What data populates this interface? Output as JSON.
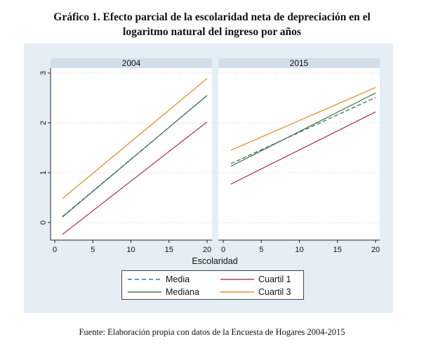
{
  "title_line1": "Gráfico 1. Efecto parcial de la escolaridad neta de depreciación en el",
  "title_line2": "logaritmo natural del ingreso por años",
  "source": "Fuente: Elaboración propia con datos de la Encuesta de Hogares 2004-2015",
  "chart_data": [
    {
      "type": "line",
      "panel_title": "2004",
      "xlabel": "Escolaridad",
      "ylabel": "",
      "x": [
        1,
        20
      ],
      "xlim": [
        0,
        20
      ],
      "ylim": [
        -0.3,
        3
      ],
      "xticks": [
        0,
        5,
        10,
        15,
        20
      ],
      "yticks": [
        0,
        1,
        2,
        3
      ],
      "grid": true,
      "series": [
        {
          "name": "Media",
          "color": "#4a6f96",
          "dash": true,
          "values": [
            0.12,
            2.55
          ]
        },
        {
          "name": "Mediana",
          "color": "#4a7f3a",
          "dash": false,
          "values": [
            0.11,
            2.55
          ]
        },
        {
          "name": "Cuartil 1",
          "color": "#b0415a",
          "dash": false,
          "values": [
            -0.24,
            2.02
          ]
        },
        {
          "name": "Cuartil 3",
          "color": "#e8902a",
          "dash": false,
          "values": [
            0.48,
            2.89
          ]
        }
      ]
    },
    {
      "type": "line",
      "panel_title": "2015",
      "xlabel": "Escolaridad",
      "ylabel": "",
      "x": [
        1,
        20
      ],
      "xlim": [
        0,
        20
      ],
      "ylim": [
        -0.3,
        3
      ],
      "xticks": [
        0,
        5,
        10,
        15,
        20
      ],
      "yticks": [
        0,
        1,
        2,
        3
      ],
      "grid": true,
      "series": [
        {
          "name": "Media",
          "color": "#4a6f96",
          "dash": true,
          "values": [
            1.18,
            2.51
          ]
        },
        {
          "name": "Mediana",
          "color": "#4a7f3a",
          "dash": false,
          "values": [
            1.13,
            2.6
          ]
        },
        {
          "name": "Cuartil 1",
          "color": "#b0415a",
          "dash": false,
          "values": [
            0.77,
            2.22
          ]
        },
        {
          "name": "Cuartil 3",
          "color": "#e8902a",
          "dash": false,
          "values": [
            1.45,
            2.71
          ]
        }
      ]
    }
  ],
  "xaxis_title": "Escolaridad",
  "legend": [
    {
      "label": "Media",
      "color": "#4a6f96",
      "dash": true
    },
    {
      "label": "Cuartil 1",
      "color": "#b0415a",
      "dash": false
    },
    {
      "label": "Mediana",
      "color": "#4a7f3a",
      "dash": false
    },
    {
      "label": "Cuartil 3",
      "color": "#e8902a",
      "dash": false
    }
  ]
}
